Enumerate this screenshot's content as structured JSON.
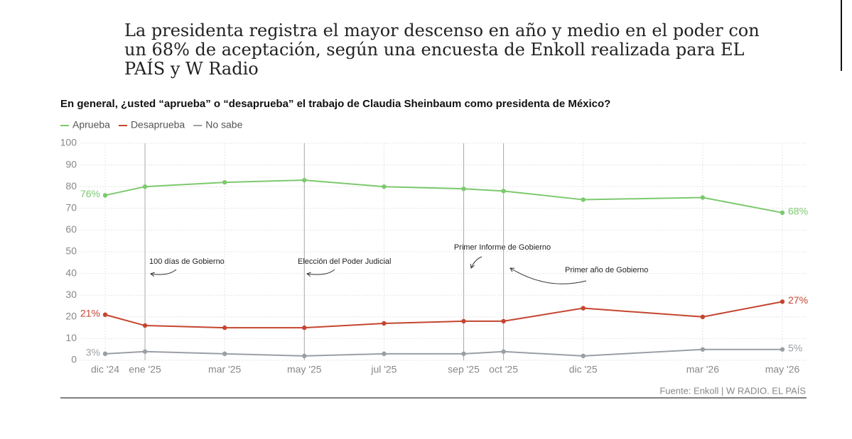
{
  "subtitle": "La presidenta registra el mayor descenso en año y medio en el poder con un 68% de aceptación, según una encuesta de Enkoll realizada para EL PAÍS y W Radio",
  "chart_data": {
    "type": "line",
    "title": "En general, ¿usted “aprueba” o “desaprueba” el trabajo de Claudia Sheinbaum como presidenta de México?",
    "x": [
      "dic '24",
      "ene '25",
      "mar '25",
      "may '25",
      "jul '25",
      "sep '25",
      "oct '25",
      "dic '25",
      "mar '26",
      "may '26"
    ],
    "series": [
      {
        "name": "Aprueba",
        "color": "#7cc96e",
        "values": [
          76,
          80,
          82,
          83,
          80,
          79,
          78,
          74,
          75,
          68
        ],
        "value_labels": [
          "76%",
          null,
          null,
          null,
          null,
          null,
          null,
          null,
          null,
          "68%"
        ]
      },
      {
        "name": "Desaprueba",
        "color": "#c4452f",
        "values": [
          21,
          16,
          15,
          15,
          17,
          18,
          18,
          24,
          20,
          27
        ],
        "value_labels": [
          "21%",
          null,
          null,
          null,
          null,
          null,
          null,
          null,
          null,
          "27%"
        ]
      },
      {
        "name": "No sabe",
        "color": "#9a9fa5",
        "values": [
          3,
          4,
          3,
          2,
          3,
          3,
          4,
          2,
          5,
          5
        ],
        "value_labels": [
          "3%",
          null,
          null,
          null,
          null,
          null,
          null,
          null,
          null,
          "5%"
        ]
      }
    ],
    "ylim": [
      0,
      100
    ],
    "yticks": [
      0,
      10,
      20,
      30,
      40,
      50,
      60,
      70,
      80,
      90,
      100
    ],
    "grid": true,
    "annotations": [
      {
        "x": "ene '25",
        "label": "100 días de Gobierno"
      },
      {
        "x": "may '25",
        "label": "Elección del Poder Judicial"
      },
      {
        "x": "sep '25",
        "label": "Primer Informe de Gobierno"
      },
      {
        "x": "oct '25",
        "label": "Primer año de Gobierno"
      }
    ],
    "source": "Fuente: Enkoll | W RADIO. EL PAÍS"
  }
}
